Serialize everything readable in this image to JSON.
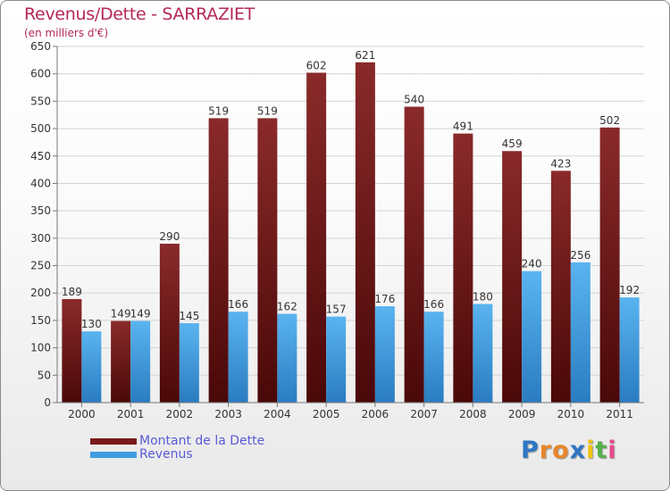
{
  "chart_data": {
    "type": "bar",
    "title": "Revenus/Dette - SARRAZIET",
    "subtitle": "(en milliers d'€)",
    "categories": [
      "2000",
      "2001",
      "2002",
      "2003",
      "2004",
      "2005",
      "2006",
      "2007",
      "2008",
      "2009",
      "2010",
      "2011"
    ],
    "series": [
      {
        "name": "Montant de la Dette",
        "values": [
          189,
          149,
          290,
          519,
          519,
          602,
          621,
          540,
          491,
          459,
          423,
          502
        ],
        "color": "#7a1b1b"
      },
      {
        "name": "Revenus",
        "values": [
          130,
          149,
          145,
          166,
          162,
          157,
          176,
          166,
          180,
          240,
          256,
          192
        ],
        "color": "#3d9de0"
      }
    ],
    "ylim": [
      0,
      650
    ],
    "yticks": [
      0,
      50,
      100,
      150,
      200,
      250,
      300,
      350,
      400,
      450,
      500,
      550,
      600,
      650
    ],
    "grid": true,
    "legend_position": "bottom-left"
  },
  "logo": {
    "letters": [
      "P",
      "r",
      "o",
      "x",
      "i",
      "t",
      "i"
    ],
    "colors": [
      "#2f76c4",
      "#e8862a",
      "#e8862a",
      "#2f76c4",
      "#f1c40f",
      "#56b04a",
      "#e84a8a"
    ]
  }
}
